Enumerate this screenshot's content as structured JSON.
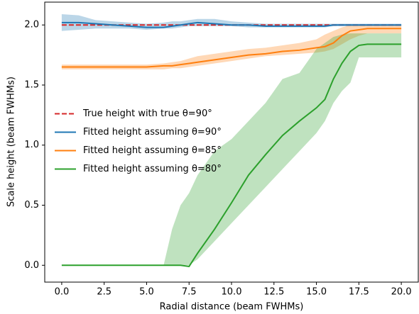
{
  "chart_data": {
    "type": "line",
    "x_label": "Radial distance (beam FWHMs)",
    "y_label": "Scale height (beam FWHMs)",
    "x": [
      0,
      1,
      2,
      3,
      4,
      5,
      6,
      6.5,
      7,
      7.5,
      8,
      9,
      10,
      11,
      12,
      13,
      14,
      15,
      15.5,
      16,
      16.5,
      17,
      17.5,
      18,
      19,
      20
    ],
    "series": [
      {
        "name": "True height with true θ=90°",
        "color": "#d62728",
        "dashed": true,
        "values": [
          2.0,
          2.0,
          2.0,
          2.0,
          2.0,
          2.0,
          2.0,
          2.0,
          2.0,
          2.0,
          2.0,
          2.0,
          2.0,
          2.0,
          2.0,
          2.0,
          2.0,
          2.0,
          2.0,
          2.0,
          2.0,
          2.0,
          2.0,
          2.0,
          2.0,
          2.0
        ]
      },
      {
        "name": "Fitted height assuming θ=90°",
        "color": "#1f77b4",
        "values": [
          2.02,
          2.02,
          2.01,
          2.0,
          1.99,
          1.98,
          1.98,
          1.99,
          2.0,
          2.01,
          2.02,
          2.01,
          2.0,
          2.0,
          1.99,
          1.99,
          1.99,
          1.99,
          1.99,
          2.0,
          2.0,
          2.0,
          2.0,
          2.0,
          2.0,
          2.0
        ],
        "lower": [
          1.95,
          1.96,
          1.97,
          1.97,
          1.97,
          1.96,
          1.97,
          1.97,
          1.98,
          1.99,
          1.99,
          1.99,
          1.99,
          1.98,
          1.98,
          1.98,
          1.98,
          1.98,
          1.98,
          1.99,
          1.99,
          1.99,
          1.99,
          1.99,
          1.99,
          1.99
        ],
        "upper": [
          2.09,
          2.08,
          2.04,
          2.03,
          2.02,
          2.01,
          2.02,
          2.03,
          2.03,
          2.04,
          2.05,
          2.05,
          2.03,
          2.02,
          2.01,
          2.01,
          2.01,
          2.01,
          2.01,
          2.01,
          2.01,
          2.01,
          2.01,
          2.01,
          2.01,
          2.01
        ]
      },
      {
        "name": "Fitted height assuming θ=85°",
        "color": "#ff7f0e",
        "values": [
          1.65,
          1.65,
          1.65,
          1.65,
          1.65,
          1.65,
          1.66,
          1.66,
          1.67,
          1.68,
          1.69,
          1.71,
          1.73,
          1.75,
          1.76,
          1.78,
          1.79,
          1.81,
          1.82,
          1.85,
          1.91,
          1.95,
          1.96,
          1.97,
          1.97,
          1.97
        ],
        "lower": [
          1.63,
          1.63,
          1.63,
          1.63,
          1.63,
          1.63,
          1.63,
          1.64,
          1.64,
          1.65,
          1.66,
          1.68,
          1.7,
          1.72,
          1.74,
          1.75,
          1.76,
          1.77,
          1.78,
          1.8,
          1.84,
          1.88,
          1.91,
          1.93,
          1.93,
          1.93
        ],
        "upper": [
          1.67,
          1.67,
          1.67,
          1.67,
          1.67,
          1.67,
          1.68,
          1.69,
          1.7,
          1.72,
          1.74,
          1.76,
          1.78,
          1.8,
          1.81,
          1.83,
          1.85,
          1.88,
          1.92,
          1.95,
          1.98,
          2.0,
          2.0,
          2.0,
          2.0,
          2.0
        ]
      },
      {
        "name": "Fitted height assuming θ=80°",
        "color": "#2ca02c",
        "values": [
          0,
          0,
          0,
          0,
          0,
          0,
          0,
          0,
          0,
          -0.01,
          0.1,
          0.3,
          0.52,
          0.75,
          0.92,
          1.08,
          1.2,
          1.31,
          1.38,
          1.55,
          1.68,
          1.78,
          1.83,
          1.84,
          1.84,
          1.84
        ],
        "lower": [
          0,
          0,
          0,
          0,
          0,
          0,
          0,
          0,
          0,
          0,
          0.05,
          0.2,
          0.35,
          0.5,
          0.65,
          0.8,
          0.95,
          1.1,
          1.2,
          1.35,
          1.45,
          1.52,
          1.73,
          1.73,
          1.73,
          1.73
        ],
        "upper": [
          0,
          0,
          0,
          0,
          0,
          0,
          0,
          0.3,
          0.5,
          0.6,
          0.75,
          0.95,
          1.05,
          1.2,
          1.35,
          1.55,
          1.6,
          1.8,
          1.85,
          1.9,
          1.92,
          1.93,
          1.93,
          1.93,
          1.93,
          1.93
        ]
      }
    ],
    "xlim": [
      -1,
      21
    ],
    "ylim": [
      -0.14,
      2.19
    ],
    "xticks": [
      {
        "value": 0,
        "label": "0.0"
      },
      2.5,
      {
        "value": 5,
        "label": "5.0"
      },
      7.5,
      {
        "value": 10,
        "label": "10.0"
      },
      12.5,
      {
        "value": 15,
        "label": "15.0"
      },
      17.5,
      {
        "value": 20,
        "label": "20.0"
      }
    ],
    "yticks": [
      {
        "value": 0,
        "label": "0.0"
      },
      0.5,
      {
        "value": 1,
        "label": "1.0"
      },
      1.5,
      {
        "value": 2,
        "label": "2.0"
      }
    ],
    "legend": "center left",
    "band_opacity": 0.3
  }
}
